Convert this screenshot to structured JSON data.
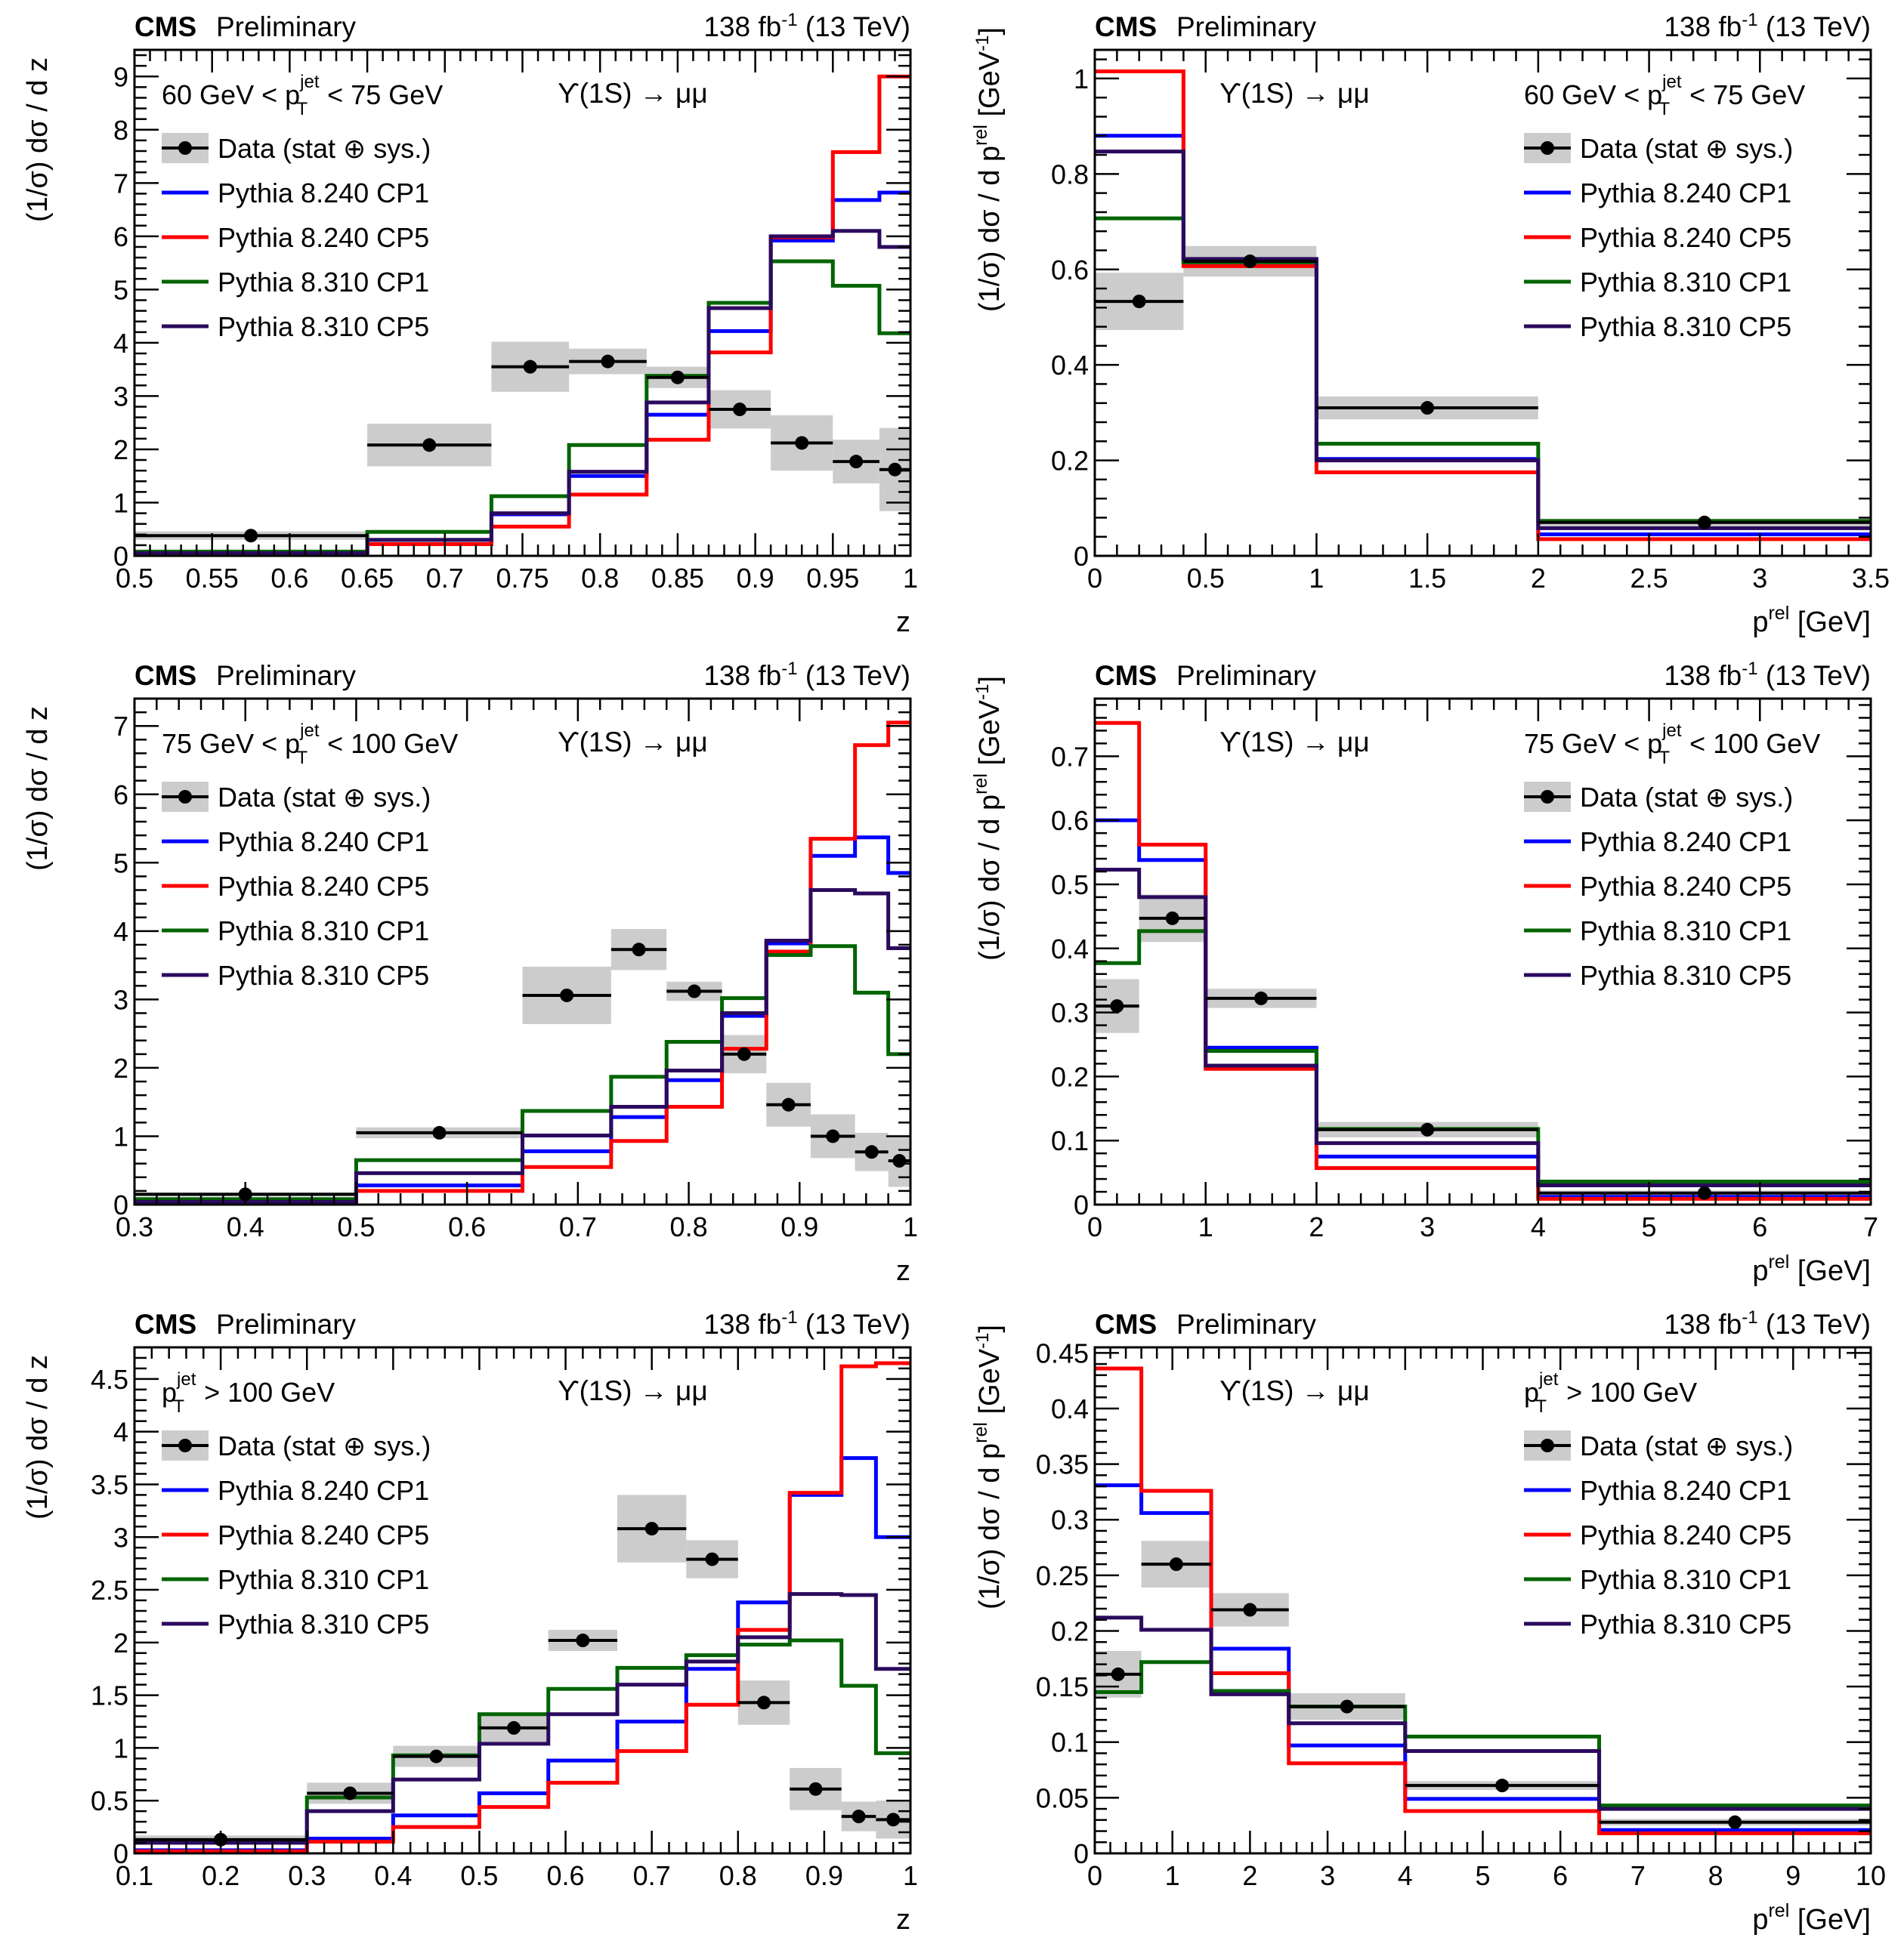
{
  "common": {
    "experiment": "CMS",
    "status": "Preliminary",
    "lumi": "138 fb",
    "lumi_sup": "-1",
    "energy": "(13 TeV)",
    "process": "ϒ(1S) → μμ",
    "legend": {
      "data": "Data (stat ⊕ sys.)",
      "models": [
        "Pythia 8.240 CP1",
        "Pythia 8.240 CP5",
        "Pythia 8.310 CP1",
        "Pythia 8.310 CP5"
      ]
    },
    "colors": {
      "data": "#000000",
      "data_band": "#cccccc",
      "pythia_8240_cp1": "#0000ff",
      "pythia_8240_cp5": "#ff0000",
      "pythia_8310_cp1": "#006400",
      "pythia_8310_cp5": "#2b0a5e"
    }
  },
  "chart_data": [
    {
      "type": "line",
      "id": "z-60-75",
      "selection": {
        "pre": "60 GeV < p",
        "sup": "jet",
        "sub": "T",
        "post": " < 75 GeV"
      },
      "xlabel": "z",
      "ylabel": "(1/σ) dσ / d z",
      "xlim": [
        0.5,
        1.0
      ],
      "ylim": [
        0,
        9.5
      ],
      "xticks": [
        0.5,
        0.55,
        0.6,
        0.65,
        0.7,
        0.75,
        0.8,
        0.85,
        0.9,
        0.95,
        1
      ],
      "xtick_labels": [
        "0.5",
        "0.55",
        "0.6",
        "0.65",
        "0.7",
        "0.75",
        "0.8",
        "0.85",
        "0.9",
        "0.95",
        "1"
      ],
      "yticks": [
        0,
        1,
        2,
        3,
        4,
        5,
        6,
        7,
        8,
        9
      ],
      "ytick_labels": [
        "0",
        "1",
        "2",
        "3",
        "4",
        "5",
        "6",
        "7",
        "8",
        "9"
      ],
      "legend_position": "top-left",
      "bin_edges": [
        0.5,
        0.65,
        0.73,
        0.78,
        0.83,
        0.87,
        0.91,
        0.95,
        0.98,
        1.0
      ],
      "data": {
        "x": [
          0.575,
          0.69,
          0.755,
          0.805,
          0.85,
          0.89,
          0.93,
          0.965,
          0.99
        ],
        "y": [
          0.38,
          2.08,
          3.55,
          3.65,
          3.35,
          2.75,
          2.12,
          1.77,
          1.62
        ],
        "err": [
          0.08,
          0.4,
          0.47,
          0.24,
          0.2,
          0.36,
          0.52,
          0.41,
          0.78
        ]
      },
      "series": [
        {
          "name": "Pythia 8.240 CP1",
          "values": [
            0.05,
            0.3,
            0.78,
            1.5,
            2.65,
            4.22,
            5.92,
            6.68,
            6.82
          ]
        },
        {
          "name": "Pythia 8.240 CP5",
          "values": [
            0.03,
            0.22,
            0.55,
            1.15,
            2.18,
            3.82,
            5.98,
            7.58,
            9.0
          ]
        },
        {
          "name": "Pythia 8.310 CP1",
          "values": [
            0.08,
            0.45,
            1.12,
            2.08,
            3.38,
            4.75,
            5.53,
            5.07,
            4.18
          ]
        },
        {
          "name": "Pythia 8.310 CP5",
          "values": [
            0.05,
            0.3,
            0.8,
            1.58,
            2.88,
            4.65,
            6.0,
            6.1,
            5.8
          ]
        }
      ]
    },
    {
      "type": "line",
      "id": "ptrel-60-75",
      "selection": {
        "pre": "60 GeV < p",
        "sup": "jet",
        "sub": "T",
        "post": " < 75 GeV"
      },
      "xlabel": "p_T^rel [GeV]",
      "ylabel": "(1/σ) dσ / d p_T^rel [GeV^-1]",
      "xlim": [
        0,
        3.5
      ],
      "ylim": [
        0,
        1.06
      ],
      "xticks": [
        0,
        0.5,
        1,
        1.5,
        2,
        2.5,
        3,
        3.5
      ],
      "xtick_labels": [
        "0",
        "0.5",
        "1",
        "1.5",
        "2",
        "2.5",
        "3",
        "3.5"
      ],
      "yticks": [
        0,
        0.2,
        0.4,
        0.6,
        0.8,
        1
      ],
      "ytick_labels": [
        "0",
        "0.2",
        "0.4",
        "0.6",
        "0.8",
        "1"
      ],
      "legend_position": "top-right",
      "bin_edges": [
        0,
        0.4,
        1,
        2,
        3.5
      ],
      "data": {
        "x": [
          0.2,
          0.7,
          1.5,
          2.75
        ],
        "y": [
          0.533,
          0.617,
          0.31,
          0.07
        ],
        "err": [
          0.06,
          0.032,
          0.024,
          0.008
        ]
      },
      "series": [
        {
          "name": "Pythia 8.240 CP1",
          "values": [
            0.88,
            0.615,
            0.203,
            0.045
          ]
        },
        {
          "name": "Pythia 8.240 CP5",
          "values": [
            1.015,
            0.607,
            0.175,
            0.035
          ]
        },
        {
          "name": "Pythia 8.310 CP1",
          "values": [
            0.707,
            0.615,
            0.235,
            0.073
          ]
        },
        {
          "name": "Pythia 8.310 CP5",
          "values": [
            0.847,
            0.622,
            0.2,
            0.058
          ]
        }
      ]
    },
    {
      "type": "line",
      "id": "z-75-100",
      "selection": {
        "pre": "75 GeV < p",
        "sup": "jet",
        "sub": "T",
        "post": " < 100 GeV"
      },
      "xlabel": "z",
      "ylabel": "(1/σ) dσ / d z",
      "xlim": [
        0.3,
        1.0
      ],
      "ylim": [
        0,
        7.4
      ],
      "xticks": [
        0.3,
        0.4,
        0.5,
        0.6,
        0.7,
        0.8,
        0.9,
        1
      ],
      "xtick_labels": [
        "0.3",
        "0.4",
        "0.5",
        "0.6",
        "0.7",
        "0.8",
        "0.9",
        "1"
      ],
      "yticks": [
        0,
        1,
        2,
        3,
        4,
        5,
        6,
        7
      ],
      "ytick_labels": [
        "0",
        "1",
        "2",
        "3",
        "4",
        "5",
        "6",
        "7"
      ],
      "legend_position": "top-left",
      "bin_edges": [
        0.3,
        0.5,
        0.65,
        0.73,
        0.78,
        0.83,
        0.87,
        0.91,
        0.95,
        0.98,
        1.0
      ],
      "data": {
        "x": [
          0.4,
          0.575,
          0.69,
          0.755,
          0.805,
          0.85,
          0.89,
          0.93,
          0.965,
          0.99
        ],
        "y": [
          0.15,
          1.05,
          3.06,
          3.73,
          3.12,
          2.2,
          1.46,
          1.0,
          0.77,
          0.64
        ],
        "err": [
          0.03,
          0.08,
          0.42,
          0.3,
          0.14,
          0.28,
          0.32,
          0.32,
          0.28,
          0.38
        ]
      },
      "series": [
        {
          "name": "Pythia 8.240 CP1",
          "values": [
            0.04,
            0.28,
            0.78,
            1.28,
            1.82,
            2.76,
            3.82,
            5.1,
            5.37,
            4.85
          ]
        },
        {
          "name": "Pythia 8.240 CP5",
          "values": [
            0.02,
            0.2,
            0.55,
            0.93,
            1.43,
            2.28,
            3.7,
            5.35,
            6.72,
            7.05
          ]
        },
        {
          "name": "Pythia 8.310 CP1",
          "values": [
            0.08,
            0.65,
            1.37,
            1.87,
            2.38,
            3.02,
            3.65,
            3.78,
            3.1,
            2.2
          ]
        },
        {
          "name": "Pythia 8.310 CP5",
          "values": [
            0.04,
            0.46,
            1.01,
            1.43,
            1.96,
            2.8,
            3.86,
            4.6,
            4.55,
            3.75
          ]
        }
      ]
    },
    {
      "type": "line",
      "id": "ptrel-75-100",
      "selection": {
        "pre": "75 GeV < p",
        "sup": "jet",
        "sub": "T",
        "post": " < 100 GeV"
      },
      "xlabel": "p_T^rel [GeV]",
      "ylabel": "(1/σ) dσ / d p_T^rel [GeV^-1]",
      "xlim": [
        0,
        7
      ],
      "ylim": [
        0,
        0.79
      ],
      "xticks": [
        0,
        1,
        2,
        3,
        4,
        5,
        6,
        7
      ],
      "xtick_labels": [
        "0",
        "1",
        "2",
        "3",
        "4",
        "5",
        "6",
        "7"
      ],
      "yticks": [
        0,
        0.1,
        0.2,
        0.3,
        0.4,
        0.5,
        0.6,
        0.7
      ],
      "ytick_labels": [
        "0",
        "0.1",
        "0.2",
        "0.3",
        "0.4",
        "0.5",
        "0.6",
        "0.7"
      ],
      "legend_position": "top-right",
      "bin_edges": [
        0,
        0.4,
        1,
        2,
        4,
        7
      ],
      "data": {
        "x": [
          0.2,
          0.7,
          1.5,
          3,
          5.5
        ],
        "y": [
          0.31,
          0.447,
          0.322,
          0.117,
          0.018
        ],
        "err": [
          0.042,
          0.037,
          0.015,
          0.012,
          0.004
        ]
      },
      "series": [
        {
          "name": "Pythia 8.240 CP1",
          "values": [
            0.6,
            0.538,
            0.245,
            0.075,
            0.012
          ]
        },
        {
          "name": "Pythia 8.240 CP5",
          "values": [
            0.752,
            0.562,
            0.212,
            0.057,
            0.009
          ]
        },
        {
          "name": "Pythia 8.310 CP1",
          "values": [
            0.377,
            0.427,
            0.24,
            0.118,
            0.036
          ]
        },
        {
          "name": "Pythia 8.310 CP5",
          "values": [
            0.523,
            0.48,
            0.217,
            0.096,
            0.03
          ]
        }
      ]
    },
    {
      "type": "line",
      "id": "z-100",
      "selection": {
        "pre": "p",
        "sup": "jet",
        "sub": "T",
        "post": " > 100 GeV"
      },
      "xlabel": "z",
      "ylabel": "(1/σ) dσ / d z",
      "xlim": [
        0.1,
        1.0
      ],
      "ylim": [
        0,
        4.8
      ],
      "xticks": [
        0.1,
        0.2,
        0.3,
        0.4,
        0.5,
        0.6,
        0.7,
        0.8,
        0.9,
        1
      ],
      "xtick_labels": [
        "0.1",
        "0.2",
        "0.3",
        "0.4",
        "0.5",
        "0.6",
        "0.7",
        "0.8",
        "0.9",
        "1"
      ],
      "yticks": [
        0,
        0.5,
        1,
        1.5,
        2,
        2.5,
        3,
        3.5,
        4,
        4.5
      ],
      "ytick_labels": [
        "0",
        "0.5",
        "1",
        "1.5",
        "2",
        "2.5",
        "3",
        "3.5",
        "4",
        "4.5"
      ],
      "legend_position": "top-left",
      "bin_edges": [
        0.1,
        0.3,
        0.4,
        0.5,
        0.58,
        0.66,
        0.74,
        0.8,
        0.86,
        0.92,
        0.96,
        1.0
      ],
      "data": {
        "x": [
          0.2,
          0.35,
          0.45,
          0.54,
          0.62,
          0.7,
          0.77,
          0.83,
          0.89,
          0.94,
          0.98
        ],
        "y": [
          0.13,
          0.57,
          0.92,
          1.19,
          2.02,
          3.08,
          2.79,
          1.43,
          0.61,
          0.35,
          0.32
        ],
        "err": [
          0.04,
          0.1,
          0.1,
          0.13,
          0.1,
          0.32,
          0.18,
          0.21,
          0.2,
          0.14,
          0.18
        ]
      },
      "series": [
        {
          "name": "Pythia 8.240 CP1",
          "values": [
            0.03,
            0.14,
            0.36,
            0.57,
            0.88,
            1.25,
            1.75,
            2.38,
            3.4,
            3.75,
            3.0
          ]
        },
        {
          "name": "Pythia 8.240 CP5",
          "values": [
            0.02,
            0.11,
            0.25,
            0.44,
            0.67,
            0.97,
            1.41,
            2.12,
            3.42,
            4.62,
            4.65
          ]
        },
        {
          "name": "Pythia 8.310 CP1",
          "values": [
            0.12,
            0.53,
            0.93,
            1.32,
            1.56,
            1.76,
            1.88,
            1.98,
            2.02,
            1.59,
            0.95
          ]
        },
        {
          "name": "Pythia 8.310 CP5",
          "values": [
            0.1,
            0.4,
            0.7,
            1.04,
            1.32,
            1.6,
            1.82,
            2.05,
            2.46,
            2.45,
            1.75
          ]
        }
      ]
    },
    {
      "type": "line",
      "id": "ptrel-100",
      "selection": {
        "pre": "p",
        "sup": "jet",
        "sub": "T",
        "post": " > 100 GeV"
      },
      "xlabel": "p_T^rel [GeV]",
      "ylabel": "(1/σ) dσ / d p_T^rel [GeV^-1]",
      "xlim": [
        0,
        10
      ],
      "ylim": [
        0,
        0.455
      ],
      "xticks": [
        0,
        1,
        2,
        3,
        4,
        5,
        6,
        7,
        8,
        9,
        10
      ],
      "xtick_labels": [
        "0",
        "1",
        "2",
        "3",
        "4",
        "5",
        "6",
        "7",
        "8",
        "9",
        "10"
      ],
      "yticks": [
        0,
        0.05,
        0.1,
        0.15,
        0.2,
        0.25,
        0.3,
        0.35,
        0.4,
        0.45
      ],
      "ytick_labels": [
        "0",
        "0.05",
        "0.1",
        "0.15",
        "0.2",
        "0.25",
        "0.3",
        "0.35",
        "0.4",
        "0.45"
      ],
      "legend_position": "top-right",
      "bin_edges": [
        0,
        0.6,
        1.5,
        2.5,
        4,
        6.5,
        10
      ],
      "data": {
        "x": [
          0.3,
          1.05,
          2.0,
          3.25,
          5.25,
          8.25
        ],
        "y": [
          0.161,
          0.26,
          0.219,
          0.132,
          0.061,
          0.028
        ],
        "err": [
          0.021,
          0.021,
          0.015,
          0.012,
          0.004,
          0.003
        ]
      },
      "series": [
        {
          "name": "Pythia 8.240 CP1",
          "values": [
            0.331,
            0.306,
            0.184,
            0.097,
            0.049,
            0.021
          ]
        },
        {
          "name": "Pythia 8.240 CP5",
          "values": [
            0.436,
            0.326,
            0.162,
            0.081,
            0.038,
            0.018
          ]
        },
        {
          "name": "Pythia 8.310 CP1",
          "values": [
            0.145,
            0.172,
            0.146,
            0.132,
            0.105,
            0.043
          ]
        },
        {
          "name": "Pythia 8.310 CP5",
          "values": [
            0.212,
            0.201,
            0.143,
            0.117,
            0.092,
            0.04
          ]
        }
      ]
    }
  ]
}
